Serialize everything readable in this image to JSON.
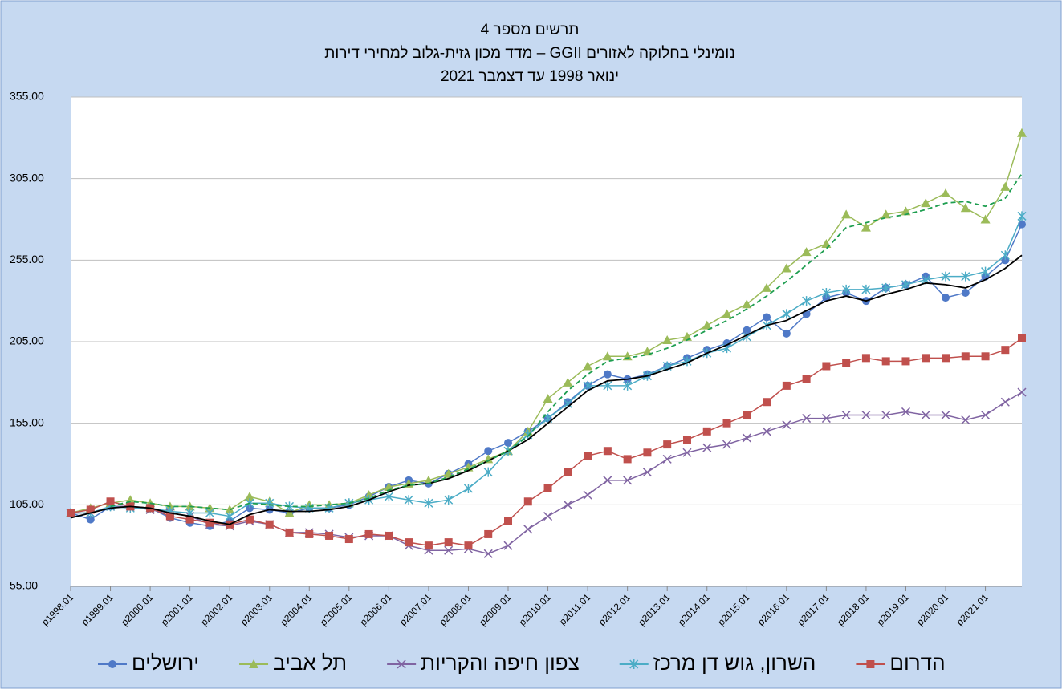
{
  "chart_data": {
    "type": "line",
    "title": [
      "תרשים מספר 4",
      "מדד מכון גזית-גלוב למחירי דירות – GGII נומינלי בחלוקה לאזורים",
      "ינואר 1998  עד דצמבר 2021"
    ],
    "x": [
      1998.0,
      1998.5,
      1999.0,
      1999.5,
      2000.0,
      2000.5,
      2001.0,
      2001.5,
      2002.0,
      2002.5,
      2003.0,
      2003.5,
      2004.0,
      2004.5,
      2005.0,
      2005.5,
      2006.0,
      2006.5,
      2007.0,
      2007.5,
      2008.0,
      2008.5,
      2009.0,
      2009.5,
      2010.0,
      2010.5,
      2011.0,
      2011.5,
      2012.0,
      2012.5,
      2013.0,
      2013.5,
      2014.0,
      2014.5,
      2015.0,
      2015.5,
      2016.0,
      2016.5,
      2017.0,
      2017.5,
      2018.0,
      2018.5,
      2019.0,
      2019.5,
      2020.0,
      2020.5,
      2021.0,
      2021.5,
      2021.917
    ],
    "xlim": [
      1998.0,
      2021.917
    ],
    "xticks": [
      {
        "value": 1998,
        "label": "p1998.01"
      },
      {
        "value": 1999,
        "label": "p1999.01"
      },
      {
        "value": 2000,
        "label": "p2000.01"
      },
      {
        "value": 2001,
        "label": "p2001.01"
      },
      {
        "value": 2002,
        "label": "p2002.01"
      },
      {
        "value": 2003,
        "label": "p2003.01"
      },
      {
        "value": 2004,
        "label": "p2004.01"
      },
      {
        "value": 2005,
        "label": "p2005.01"
      },
      {
        "value": 2006,
        "label": "p2006.01"
      },
      {
        "value": 2007,
        "label": "p2007.01"
      },
      {
        "value": 2008,
        "label": "p2008.01"
      },
      {
        "value": 2009,
        "label": "p2009.01"
      },
      {
        "value": 2010,
        "label": "p2010.01"
      },
      {
        "value": 2011,
        "label": "p2011.01"
      },
      {
        "value": 2012,
        "label": "p2012.01"
      },
      {
        "value": 2013,
        "label": "p2013.01"
      },
      {
        "value": 2014,
        "label": "p2014.01"
      },
      {
        "value": 2015,
        "label": "p2015.01"
      },
      {
        "value": 2016,
        "label": "p2016.01"
      },
      {
        "value": 2017,
        "label": "p2017.01"
      },
      {
        "value": 2018,
        "label": "p2018.01"
      },
      {
        "value": 2019,
        "label": "p2019.01"
      },
      {
        "value": 2020,
        "label": "p2020.01"
      },
      {
        "value": 2021,
        "label": "p2021.01"
      }
    ],
    "ylim": [
      55,
      355
    ],
    "yticks": [
      {
        "value": 55,
        "label": "55.00"
      },
      {
        "value": 105,
        "label": "105.00"
      },
      {
        "value": 155,
        "label": "155.00"
      },
      {
        "value": 205,
        "label": "205.00"
      },
      {
        "value": 255,
        "label": "255.00"
      },
      {
        "value": 305,
        "label": "305.00"
      },
      {
        "value": 355,
        "label": "355.00"
      }
    ],
    "grid": true,
    "series": [
      {
        "name": "ירושלים",
        "color": "#4f79c7",
        "marker": "circle",
        "values": [
          100,
          96,
          104,
          104,
          103,
          97,
          94,
          92,
          95,
          103,
          102,
          100,
          103,
          103,
          105,
          110,
          116,
          120,
          118,
          124,
          130,
          138,
          143,
          150,
          158,
          168,
          178,
          185,
          182,
          185,
          190,
          195,
          200,
          204,
          212,
          220,
          210,
          222,
          232,
          235,
          230,
          238,
          240,
          245,
          232,
          235,
          245,
          255,
          277
        ]
      },
      {
        "name": "תל אביב",
        "color": "#9bbb59",
        "marker": "triangle",
        "values": [
          100,
          103,
          106,
          108,
          106,
          104,
          104,
          103,
          102,
          110,
          107,
          100,
          105,
          105,
          106,
          111,
          116,
          118,
          120,
          124,
          128,
          133,
          138,
          150,
          170,
          180,
          190,
          196,
          196,
          199,
          206,
          208,
          215,
          222,
          228,
          238,
          250,
          260,
          265,
          283,
          275,
          283,
          285,
          290,
          296,
          287,
          280,
          300,
          333
        ]
      },
      {
        "name": "צפון חיפה והקריות",
        "color": "#8064a2",
        "marker": "x",
        "values": [
          100,
          100,
          104,
          104,
          102,
          100,
          98,
          93,
          92,
          95,
          93,
          88,
          88,
          87,
          85,
          86,
          86,
          80,
          77,
          77,
          78,
          75,
          80,
          90,
          98,
          105,
          111,
          120,
          120,
          125,
          133,
          137,
          140,
          142,
          146,
          150,
          154,
          158,
          158,
          160,
          160,
          160,
          162,
          160,
          160,
          157,
          160,
          168,
          174
        ]
      },
      {
        "name": "השרון, גוש דן מרכז",
        "color": "#4bacc6",
        "marker": "star",
        "values": [
          100,
          100,
          104,
          103,
          103,
          101,
          100,
          100,
          98,
          106,
          106,
          104,
          103,
          103,
          106,
          108,
          110,
          108,
          106,
          108,
          115,
          125,
          138,
          148,
          158,
          167,
          178,
          178,
          178,
          184,
          190,
          193,
          198,
          201,
          208,
          215,
          222,
          230,
          235,
          237,
          237,
          238,
          240,
          243,
          245,
          245,
          248,
          258,
          282
        ]
      },
      {
        "name": "הדרום",
        "color": "#c0504d",
        "marker": "square",
        "values": [
          100,
          102,
          107,
          104,
          103,
          98,
          96,
          94,
          93,
          96,
          93,
          88,
          87,
          86,
          84,
          87,
          86,
          82,
          80,
          82,
          80,
          87,
          95,
          107,
          115,
          125,
          135,
          138,
          133,
          137,
          142,
          145,
          150,
          155,
          160,
          168,
          178,
          182,
          190,
          192,
          195,
          193,
          193,
          195,
          195,
          196,
          196,
          200,
          207
        ]
      },
      {
        "color": "#000000",
        "values": [
          97,
          100,
          103,
          104,
          103,
          100,
          98,
          95,
          93,
          99,
          102,
          101,
          101,
          102,
          104,
          108,
          113,
          117,
          118,
          121,
          126,
          132,
          138,
          145,
          155,
          165,
          175,
          181,
          182,
          184,
          188,
          192,
          198,
          203,
          209,
          215,
          218,
          224,
          230,
          233,
          230,
          234,
          237,
          241,
          240,
          238,
          243,
          250,
          258
        ]
      },
      {
        "color": "#1e9e50",
        "dashed": true,
        "values": [
          null,
          null,
          104,
          107,
          106,
          104,
          104,
          103,
          102,
          106,
          105,
          104,
          104,
          105,
          106,
          109,
          114,
          117,
          118,
          122,
          127,
          132,
          138,
          147,
          162,
          175,
          185,
          193,
          195,
          197,
          201,
          206,
          212,
          218,
          225,
          233,
          242,
          252,
          262,
          275,
          278,
          281,
          283,
          286,
          290,
          291,
          288,
          293,
          308
        ]
      }
    ]
  }
}
